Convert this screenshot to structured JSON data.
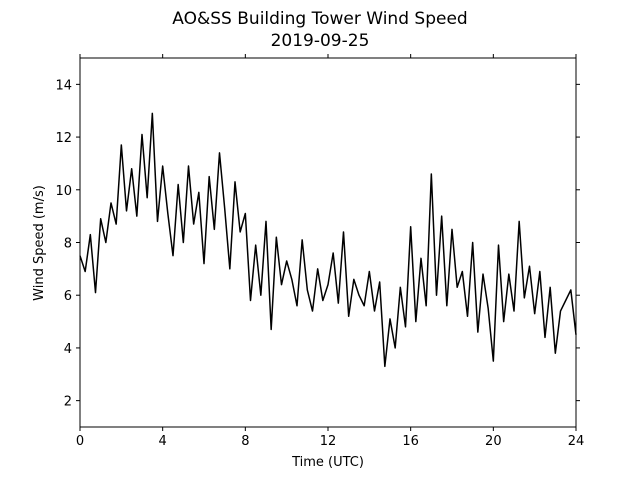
{
  "chart_data": {
    "type": "line",
    "title": "AO&SS Building Tower Wind Speed",
    "subtitle": "2019-09-25",
    "x_label": "Time (UTC)",
    "y_label": "Wind Speed (m/s)",
    "xlim": [
      0,
      24
    ],
    "xticks": [
      0,
      4,
      8,
      12,
      16,
      20,
      24
    ],
    "ylim": [
      1,
      15
    ],
    "yticks": [
      2,
      4,
      6,
      8,
      10,
      12,
      14
    ],
    "series": [
      {
        "color": "#000000",
        "x": [
          0,
          0.25,
          0.5,
          0.75,
          1,
          1.25,
          1.5,
          1.75,
          2,
          2.25,
          2.5,
          2.75,
          3,
          3.25,
          3.5,
          3.75,
          4,
          4.25,
          4.5,
          4.75,
          5,
          5.25,
          5.5,
          5.75,
          6,
          6.25,
          6.5,
          6.75,
          7,
          7.25,
          7.5,
          7.75,
          8,
          8.25,
          8.5,
          8.75,
          9,
          9.25,
          9.5,
          9.75,
          10,
          10.25,
          10.5,
          10.75,
          11,
          11.25,
          11.5,
          11.75,
          12,
          12.25,
          12.5,
          12.75,
          13,
          13.25,
          13.5,
          13.75,
          14,
          14.25,
          14.5,
          14.75,
          15,
          15.25,
          15.5,
          15.75,
          16,
          16.25,
          16.5,
          16.75,
          17,
          17.25,
          17.5,
          17.75,
          18,
          18.25,
          18.5,
          18.75,
          19,
          19.25,
          19.5,
          19.75,
          20,
          20.25,
          20.5,
          20.75,
          21,
          21.25,
          21.5,
          21.75,
          22,
          22.25,
          22.5,
          22.75,
          23,
          23.25,
          23.5,
          23.75,
          24
        ],
        "values": [
          7.5,
          6.9,
          8.3,
          6.1,
          8.9,
          8.0,
          9.5,
          8.7,
          11.7,
          9.2,
          10.8,
          9.0,
          12.1,
          9.7,
          12.9,
          8.8,
          10.9,
          9.1,
          7.5,
          10.2,
          8.0,
          10.9,
          8.7,
          9.9,
          7.2,
          10.5,
          8.5,
          11.4,
          9.3,
          7.0,
          10.3,
          8.4,
          9.1,
          5.8,
          7.9,
          6.0,
          8.8,
          4.7,
          8.2,
          6.4,
          7.3,
          6.6,
          5.6,
          8.1,
          6.2,
          5.4,
          7.0,
          5.8,
          6.4,
          7.6,
          5.7,
          8.4,
          5.2,
          6.6,
          6.0,
          5.6,
          6.9,
          5.4,
          6.5,
          3.3,
          5.1,
          4.0,
          6.3,
          4.8,
          8.6,
          5.0,
          7.4,
          5.6,
          10.6,
          6.0,
          9.0,
          5.6,
          8.5,
          6.3,
          6.9,
          5.2,
          8.0,
          4.6,
          6.8,
          5.5,
          3.5,
          7.9,
          5.0,
          6.8,
          5.4,
          8.8,
          5.9,
          7.1,
          5.3,
          6.9,
          4.4,
          6.3,
          3.8,
          5.4,
          5.8,
          6.2,
          4.5
        ]
      }
    ]
  }
}
